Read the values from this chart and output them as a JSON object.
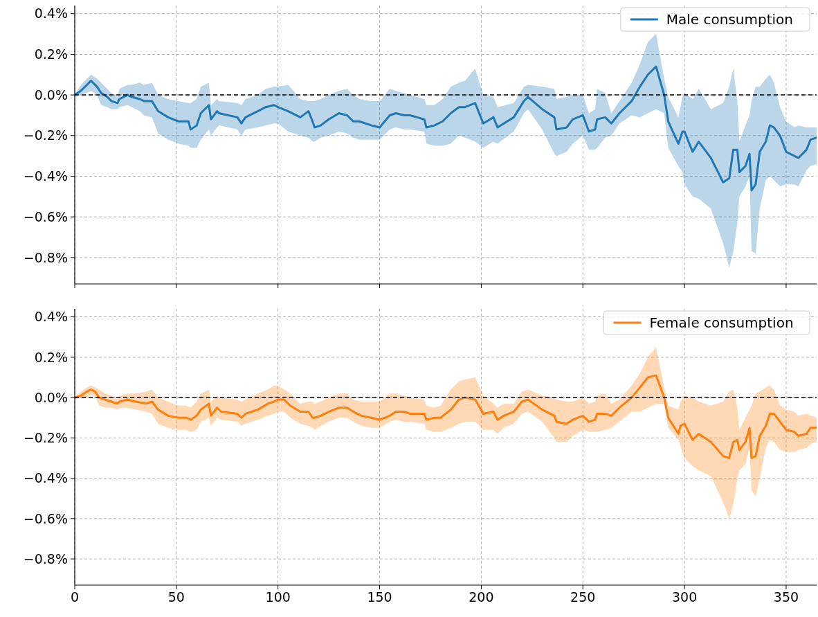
{
  "chart_data": [
    {
      "type": "line",
      "xlim": [
        0,
        365
      ],
      "ylim": [
        -0.93,
        0.44
      ],
      "xticks": [
        0,
        50,
        100,
        150,
        200,
        250,
        300,
        350
      ],
      "yticks": [
        {
          "value": 0.4,
          "label": "0.4%"
        },
        {
          "value": 0.2,
          "label": "0.2%"
        },
        {
          "value": 0.0,
          "label": "0.0%"
        },
        {
          "value": -0.2,
          "label": "−0.2%"
        },
        {
          "value": -0.4,
          "label": "−0.4%"
        },
        {
          "value": -0.6,
          "label": "−0.6%"
        },
        {
          "value": -0.8,
          "label": "−0.8%"
        }
      ],
      "tick_labels": "y",
      "grid": true,
      "legend": "top right",
      "ref_lines": [
        {
          "axis": "y",
          "value": 0,
          "color": "#000000",
          "line_style": "dashed"
        }
      ],
      "series": [
        {
          "name": "Male consumption",
          "color": "#1f77b4",
          "x": [
            0,
            3,
            6,
            8,
            11,
            13,
            16,
            18,
            21,
            22,
            26,
            28,
            32,
            34,
            38,
            41,
            46,
            51,
            56,
            57,
            60,
            62,
            66,
            67,
            70,
            71,
            80,
            82,
            84,
            90,
            94,
            98,
            100,
            105,
            111,
            115,
            117,
            118,
            121,
            125,
            130,
            134,
            137,
            140,
            146,
            150,
            155,
            158,
            162,
            165,
            172,
            173,
            177,
            181,
            185,
            189,
            192,
            197,
            201,
            206,
            208,
            216,
            221,
            223,
            230,
            236,
            237,
            242,
            245,
            250,
            253,
            256,
            257,
            261,
            264,
            268,
            274,
            278,
            282,
            286,
            290,
            292,
            297,
            299,
            300,
            304,
            307,
            313,
            319,
            322,
            324,
            326,
            327,
            330,
            332,
            333,
            335,
            337,
            340,
            342,
            344,
            347,
            350,
            354,
            356,
            360,
            362,
            365
          ],
          "values": [
            0.0,
            0.02,
            0.05,
            0.07,
            0.04,
            0.01,
            -0.01,
            -0.03,
            -0.04,
            -0.02,
            0.0,
            -0.01,
            -0.02,
            -0.03,
            -0.03,
            -0.08,
            -0.11,
            -0.13,
            -0.13,
            -0.17,
            -0.15,
            -0.09,
            -0.05,
            -0.12,
            -0.08,
            -0.09,
            -0.11,
            -0.14,
            -0.11,
            -0.08,
            -0.06,
            -0.05,
            -0.06,
            -0.08,
            -0.11,
            -0.08,
            -0.13,
            -0.16,
            -0.15,
            -0.12,
            -0.09,
            -0.1,
            -0.13,
            -0.13,
            -0.15,
            -0.16,
            -0.1,
            -0.09,
            -0.1,
            -0.1,
            -0.12,
            -0.16,
            -0.15,
            -0.13,
            -0.09,
            -0.06,
            -0.06,
            -0.04,
            -0.14,
            -0.11,
            -0.16,
            -0.11,
            -0.03,
            -0.01,
            -0.07,
            -0.11,
            -0.17,
            -0.16,
            -0.12,
            -0.1,
            -0.18,
            -0.17,
            -0.12,
            -0.11,
            -0.14,
            -0.09,
            -0.03,
            0.04,
            0.1,
            0.14,
            0.0,
            -0.13,
            -0.24,
            -0.18,
            -0.18,
            -0.28,
            -0.23,
            -0.31,
            -0.43,
            -0.41,
            -0.27,
            -0.27,
            -0.38,
            -0.35,
            -0.29,
            -0.47,
            -0.44,
            -0.28,
            -0.23,
            -0.15,
            -0.16,
            -0.2,
            -0.28,
            -0.3,
            -0.31,
            -0.27,
            -0.22,
            -0.21
          ],
          "upper": [
            0.0,
            0.05,
            0.08,
            0.1,
            0.08,
            0.06,
            0.03,
            0.01,
            -0.01,
            0.03,
            0.05,
            0.05,
            0.06,
            0.05,
            0.06,
            0.0,
            -0.02,
            -0.03,
            -0.04,
            -0.04,
            -0.02,
            0.04,
            0.06,
            -0.05,
            -0.02,
            -0.03,
            -0.04,
            -0.05,
            -0.02,
            0.0,
            0.03,
            0.04,
            0.04,
            0.05,
            -0.02,
            -0.03,
            -0.03,
            -0.03,
            -0.02,
            0.0,
            0.02,
            0.03,
            0.0,
            -0.02,
            -0.03,
            -0.03,
            0.03,
            0.02,
            0.01,
            0.0,
            -0.02,
            -0.05,
            -0.05,
            -0.02,
            0.04,
            0.06,
            0.07,
            0.13,
            0.0,
            -0.01,
            -0.06,
            -0.04,
            0.04,
            0.05,
            0.04,
            0.03,
            -0.02,
            -0.01,
            0.0,
            0.0,
            -0.09,
            -0.07,
            0.03,
            0.01,
            -0.09,
            -0.03,
            0.06,
            0.15,
            0.26,
            0.3,
            0.08,
            -0.01,
            -0.11,
            -0.01,
            0.01,
            -0.02,
            0.03,
            -0.07,
            -0.04,
            0.04,
            0.13,
            -0.03,
            -0.23,
            -0.15,
            -0.1,
            -0.03,
            0.04,
            0.04,
            0.08,
            0.1,
            0.06,
            -0.06,
            -0.13,
            -0.16,
            -0.15,
            -0.16,
            -0.16,
            -0.16
          ],
          "lower": [
            -0.01,
            0.0,
            0.01,
            0.02,
            0.0,
            -0.05,
            -0.06,
            -0.07,
            -0.07,
            -0.06,
            -0.05,
            -0.06,
            -0.08,
            -0.1,
            -0.11,
            -0.19,
            -0.22,
            -0.24,
            -0.25,
            -0.26,
            -0.26,
            -0.22,
            -0.17,
            -0.2,
            -0.16,
            -0.15,
            -0.17,
            -0.2,
            -0.17,
            -0.16,
            -0.15,
            -0.14,
            -0.14,
            -0.18,
            -0.2,
            -0.21,
            -0.23,
            -0.23,
            -0.21,
            -0.2,
            -0.18,
            -0.19,
            -0.21,
            -0.22,
            -0.22,
            -0.22,
            -0.17,
            -0.16,
            -0.17,
            -0.17,
            -0.18,
            -0.24,
            -0.25,
            -0.25,
            -0.24,
            -0.2,
            -0.21,
            -0.23,
            -0.26,
            -0.23,
            -0.24,
            -0.18,
            -0.09,
            -0.07,
            -0.17,
            -0.29,
            -0.3,
            -0.28,
            -0.24,
            -0.2,
            -0.27,
            -0.27,
            -0.26,
            -0.21,
            -0.2,
            -0.14,
            -0.1,
            -0.11,
            -0.09,
            -0.07,
            -0.09,
            -0.26,
            -0.35,
            -0.38,
            -0.44,
            -0.5,
            -0.51,
            -0.56,
            -0.73,
            -0.85,
            -0.77,
            -0.63,
            -0.5,
            -0.45,
            -0.4,
            -0.77,
            -0.78,
            -0.56,
            -0.42,
            -0.4,
            -0.42,
            -0.45,
            -0.44,
            -0.44,
            -0.45,
            -0.37,
            -0.35,
            -0.34
          ]
        }
      ]
    },
    {
      "type": "line",
      "xlim": [
        0,
        365
      ],
      "ylim": [
        -0.93,
        0.44
      ],
      "xticks": [
        0,
        50,
        100,
        150,
        200,
        250,
        300,
        350
      ],
      "yticks": [
        {
          "value": 0.4,
          "label": "0.4%"
        },
        {
          "value": 0.2,
          "label": "0.2%"
        },
        {
          "value": 0.0,
          "label": "0.0%"
        },
        {
          "value": -0.2,
          "label": "−0.2%"
        },
        {
          "value": -0.4,
          "label": "−0.4%"
        },
        {
          "value": -0.6,
          "label": "−0.6%"
        },
        {
          "value": -0.8,
          "label": "−0.8%"
        }
      ],
      "grid": true,
      "legend": "top right",
      "ref_lines": [
        {
          "axis": "y",
          "value": 0,
          "color": "#000000",
          "line_style": "dashed"
        }
      ],
      "series": [
        {
          "name": "Female consumption",
          "color": "#ff7f0e",
          "x": [
            0,
            3,
            6,
            8,
            10,
            12,
            15,
            18,
            21,
            22,
            26,
            30,
            35,
            38,
            41,
            46,
            51,
            55,
            57,
            60,
            62,
            66,
            67,
            70,
            72,
            80,
            82,
            84,
            90,
            95,
            98,
            100,
            103,
            106,
            111,
            115,
            117,
            118,
            121,
            125,
            130,
            134,
            137,
            141,
            146,
            150,
            155,
            158,
            162,
            165,
            172,
            173,
            177,
            180,
            185,
            189,
            192,
            197,
            201,
            206,
            208,
            211,
            216,
            220,
            223,
            230,
            236,
            237,
            242,
            245,
            250,
            253,
            256,
            257,
            261,
            264,
            268,
            274,
            278,
            282,
            286,
            290,
            292,
            297,
            298,
            300,
            304,
            307,
            313,
            319,
            322,
            324,
            326,
            327,
            330,
            332,
            333,
            335,
            337,
            340,
            342,
            344,
            347,
            350,
            354,
            356,
            360,
            362,
            365
          ],
          "values": [
            0.0,
            0.01,
            0.03,
            0.04,
            0.03,
            0.0,
            -0.01,
            -0.02,
            -0.03,
            -0.02,
            -0.01,
            -0.02,
            -0.03,
            -0.02,
            -0.06,
            -0.09,
            -0.1,
            -0.1,
            -0.11,
            -0.09,
            -0.06,
            -0.03,
            -0.09,
            -0.05,
            -0.07,
            -0.08,
            -0.1,
            -0.08,
            -0.06,
            -0.03,
            -0.02,
            -0.01,
            -0.01,
            -0.04,
            -0.07,
            -0.07,
            -0.1,
            -0.1,
            -0.09,
            -0.07,
            -0.05,
            -0.05,
            -0.07,
            -0.09,
            -0.1,
            -0.11,
            -0.09,
            -0.07,
            -0.07,
            -0.08,
            -0.08,
            -0.11,
            -0.1,
            -0.1,
            -0.06,
            -0.01,
            0.0,
            -0.01,
            -0.08,
            -0.07,
            -0.11,
            -0.09,
            -0.07,
            -0.02,
            -0.01,
            -0.06,
            -0.09,
            -0.12,
            -0.13,
            -0.11,
            -0.09,
            -0.12,
            -0.11,
            -0.08,
            -0.08,
            -0.09,
            -0.05,
            0.0,
            0.05,
            0.1,
            0.11,
            0.0,
            -0.1,
            -0.18,
            -0.14,
            -0.13,
            -0.21,
            -0.18,
            -0.22,
            -0.29,
            -0.3,
            -0.22,
            -0.21,
            -0.26,
            -0.22,
            -0.15,
            -0.3,
            -0.29,
            -0.19,
            -0.14,
            -0.08,
            -0.08,
            -0.12,
            -0.16,
            -0.17,
            -0.19,
            -0.18,
            -0.15,
            -0.15
          ],
          "upper": [
            0.0,
            0.03,
            0.05,
            0.06,
            0.05,
            0.04,
            0.02,
            0.01,
            -0.01,
            0.01,
            0.02,
            0.02,
            0.03,
            0.04,
            0.0,
            -0.02,
            -0.04,
            -0.04,
            -0.05,
            -0.02,
            0.02,
            0.04,
            -0.02,
            0.01,
            0.0,
            -0.01,
            -0.02,
            -0.01,
            0.02,
            0.04,
            0.06,
            0.06,
            0.04,
            0.02,
            -0.03,
            -0.02,
            -0.02,
            -0.03,
            -0.02,
            0.0,
            0.02,
            0.02,
            -0.01,
            -0.02,
            -0.02,
            -0.02,
            0.02,
            0.02,
            0.01,
            0.0,
            -0.01,
            -0.04,
            -0.05,
            -0.04,
            0.04,
            0.08,
            0.09,
            0.1,
            0.01,
            -0.03,
            -0.05,
            -0.03,
            -0.03,
            0.03,
            0.04,
            0.01,
            0.0,
            -0.01,
            -0.02,
            -0.02,
            0.0,
            -0.03,
            -0.02,
            0.01,
            0.02,
            -0.03,
            -0.01,
            0.06,
            0.12,
            0.2,
            0.25,
            0.05,
            -0.04,
            -0.06,
            -0.02,
            0.01,
            0.0,
            -0.02,
            -0.04,
            -0.02,
            0.03,
            0.04,
            -0.05,
            -0.16,
            -0.1,
            -0.06,
            -0.04,
            0.02,
            0.03,
            0.05,
            0.06,
            0.04,
            -0.04,
            -0.06,
            -0.07,
            -0.09,
            -0.08,
            -0.09,
            -0.1
          ],
          "lower": [
            -0.01,
            0.0,
            0.0,
            0.01,
            0.01,
            -0.04,
            -0.05,
            -0.05,
            -0.06,
            -0.05,
            -0.05,
            -0.06,
            -0.07,
            -0.08,
            -0.13,
            -0.15,
            -0.16,
            -0.16,
            -0.17,
            -0.16,
            -0.12,
            -0.1,
            -0.14,
            -0.1,
            -0.11,
            -0.12,
            -0.14,
            -0.13,
            -0.11,
            -0.09,
            -0.08,
            -0.07,
            -0.07,
            -0.1,
            -0.13,
            -0.14,
            -0.15,
            -0.16,
            -0.14,
            -0.12,
            -0.1,
            -0.1,
            -0.12,
            -0.14,
            -0.15,
            -0.15,
            -0.12,
            -0.11,
            -0.12,
            -0.12,
            -0.13,
            -0.16,
            -0.17,
            -0.17,
            -0.15,
            -0.13,
            -0.12,
            -0.12,
            -0.16,
            -0.16,
            -0.18,
            -0.15,
            -0.13,
            -0.08,
            -0.07,
            -0.12,
            -0.2,
            -0.22,
            -0.22,
            -0.19,
            -0.16,
            -0.17,
            -0.17,
            -0.17,
            -0.16,
            -0.15,
            -0.12,
            -0.07,
            -0.07,
            -0.05,
            -0.03,
            -0.03,
            -0.15,
            -0.21,
            -0.24,
            -0.3,
            -0.34,
            -0.36,
            -0.39,
            -0.52,
            -0.6,
            -0.53,
            -0.4,
            -0.36,
            -0.33,
            -0.25,
            -0.46,
            -0.49,
            -0.4,
            -0.25,
            -0.21,
            -0.22,
            -0.26,
            -0.27,
            -0.27,
            -0.26,
            -0.25,
            -0.23,
            -0.22
          ]
        }
      ]
    }
  ]
}
